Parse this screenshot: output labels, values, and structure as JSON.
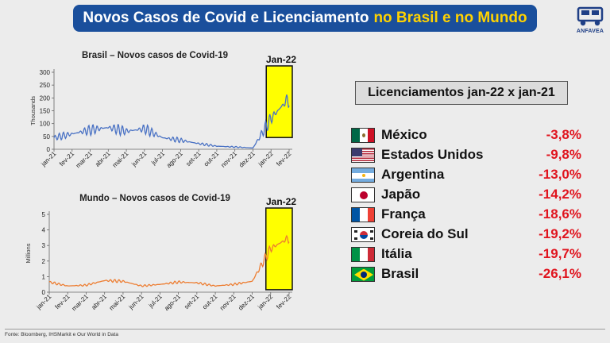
{
  "header": {
    "title_part1": "Novos Casos de Covid e Licenciamento",
    "title_part2": "no Brasil e no Mundo",
    "logo_text": "ANFAVEA",
    "banner_color": "#1a4f9c",
    "highlight_color": "#ffd200"
  },
  "chart_data": [
    {
      "type": "line",
      "title": "Brasil – Novos casos de Covid-19",
      "ylabel": "Thousands",
      "ylim": [
        0,
        300
      ],
      "yticks": [
        0,
        50,
        100,
        150,
        200,
        250,
        300
      ],
      "x_tick_labels": [
        "jan-21",
        "fev-21",
        "mar-21",
        "abr-21",
        "mai-21",
        "jun-21",
        "jul-21",
        "ago-21",
        "set-21",
        "out-21",
        "nov-21",
        "dez-21",
        "jan-22",
        "fev-22"
      ],
      "highlight_label": "Jan-22",
      "series_color": "#4a72c4",
      "highlight_color": "#ffff00",
      "monthly_values": [
        45,
        60,
        75,
        85,
        70,
        80,
        45,
        35,
        22,
        12,
        9,
        5,
        120,
        200
      ]
    },
    {
      "type": "line",
      "title": "Mundo – Novos casos de Covid-19",
      "ylabel": "Millions",
      "ylim": [
        0,
        5
      ],
      "yticks": [
        0,
        1,
        2,
        3,
        4,
        5
      ],
      "x_tick_labels": [
        "jan-21",
        "fev-21",
        "mar-21",
        "abr-21",
        "mai-21",
        "jun-21",
        "jul-21",
        "ago-21",
        "set-21",
        "out-21",
        "nov-21",
        "dez-21",
        "jan-22",
        "fev-22"
      ],
      "highlight_label": "Jan-22",
      "series_color": "#ed7d31",
      "highlight_color": "#ffff00",
      "monthly_values": [
        0.65,
        0.4,
        0.45,
        0.75,
        0.7,
        0.4,
        0.5,
        0.65,
        0.6,
        0.4,
        0.5,
        0.7,
        2.8,
        3.5
      ]
    }
  ],
  "licenciamentos": {
    "title": "Licenciamentos jan-22 x jan-21",
    "rows": [
      {
        "country": "México",
        "value": "-3,8%",
        "flag": "mexico-flag"
      },
      {
        "country": "Estados Unidos",
        "value": "-9,8%",
        "flag": "usa-flag"
      },
      {
        "country": "Argentina",
        "value": "-13,0%",
        "flag": "argentina-flag"
      },
      {
        "country": "Japão",
        "value": "-14,2%",
        "flag": "japan-flag"
      },
      {
        "country": "França",
        "value": "-18,6%",
        "flag": "france-flag"
      },
      {
        "country": "Coreia do Sul",
        "value": "-19,2%",
        "flag": "korea-flag"
      },
      {
        "country": "Itália",
        "value": "-19,7%",
        "flag": "italy-flag"
      },
      {
        "country": "Brasil",
        "value": "-26,1%",
        "flag": "brazil-flag"
      }
    ],
    "value_color": "#e0141e"
  },
  "footer": {
    "source": "Fonte: Bloomberg, IHSMarkit e Our World in Data"
  }
}
